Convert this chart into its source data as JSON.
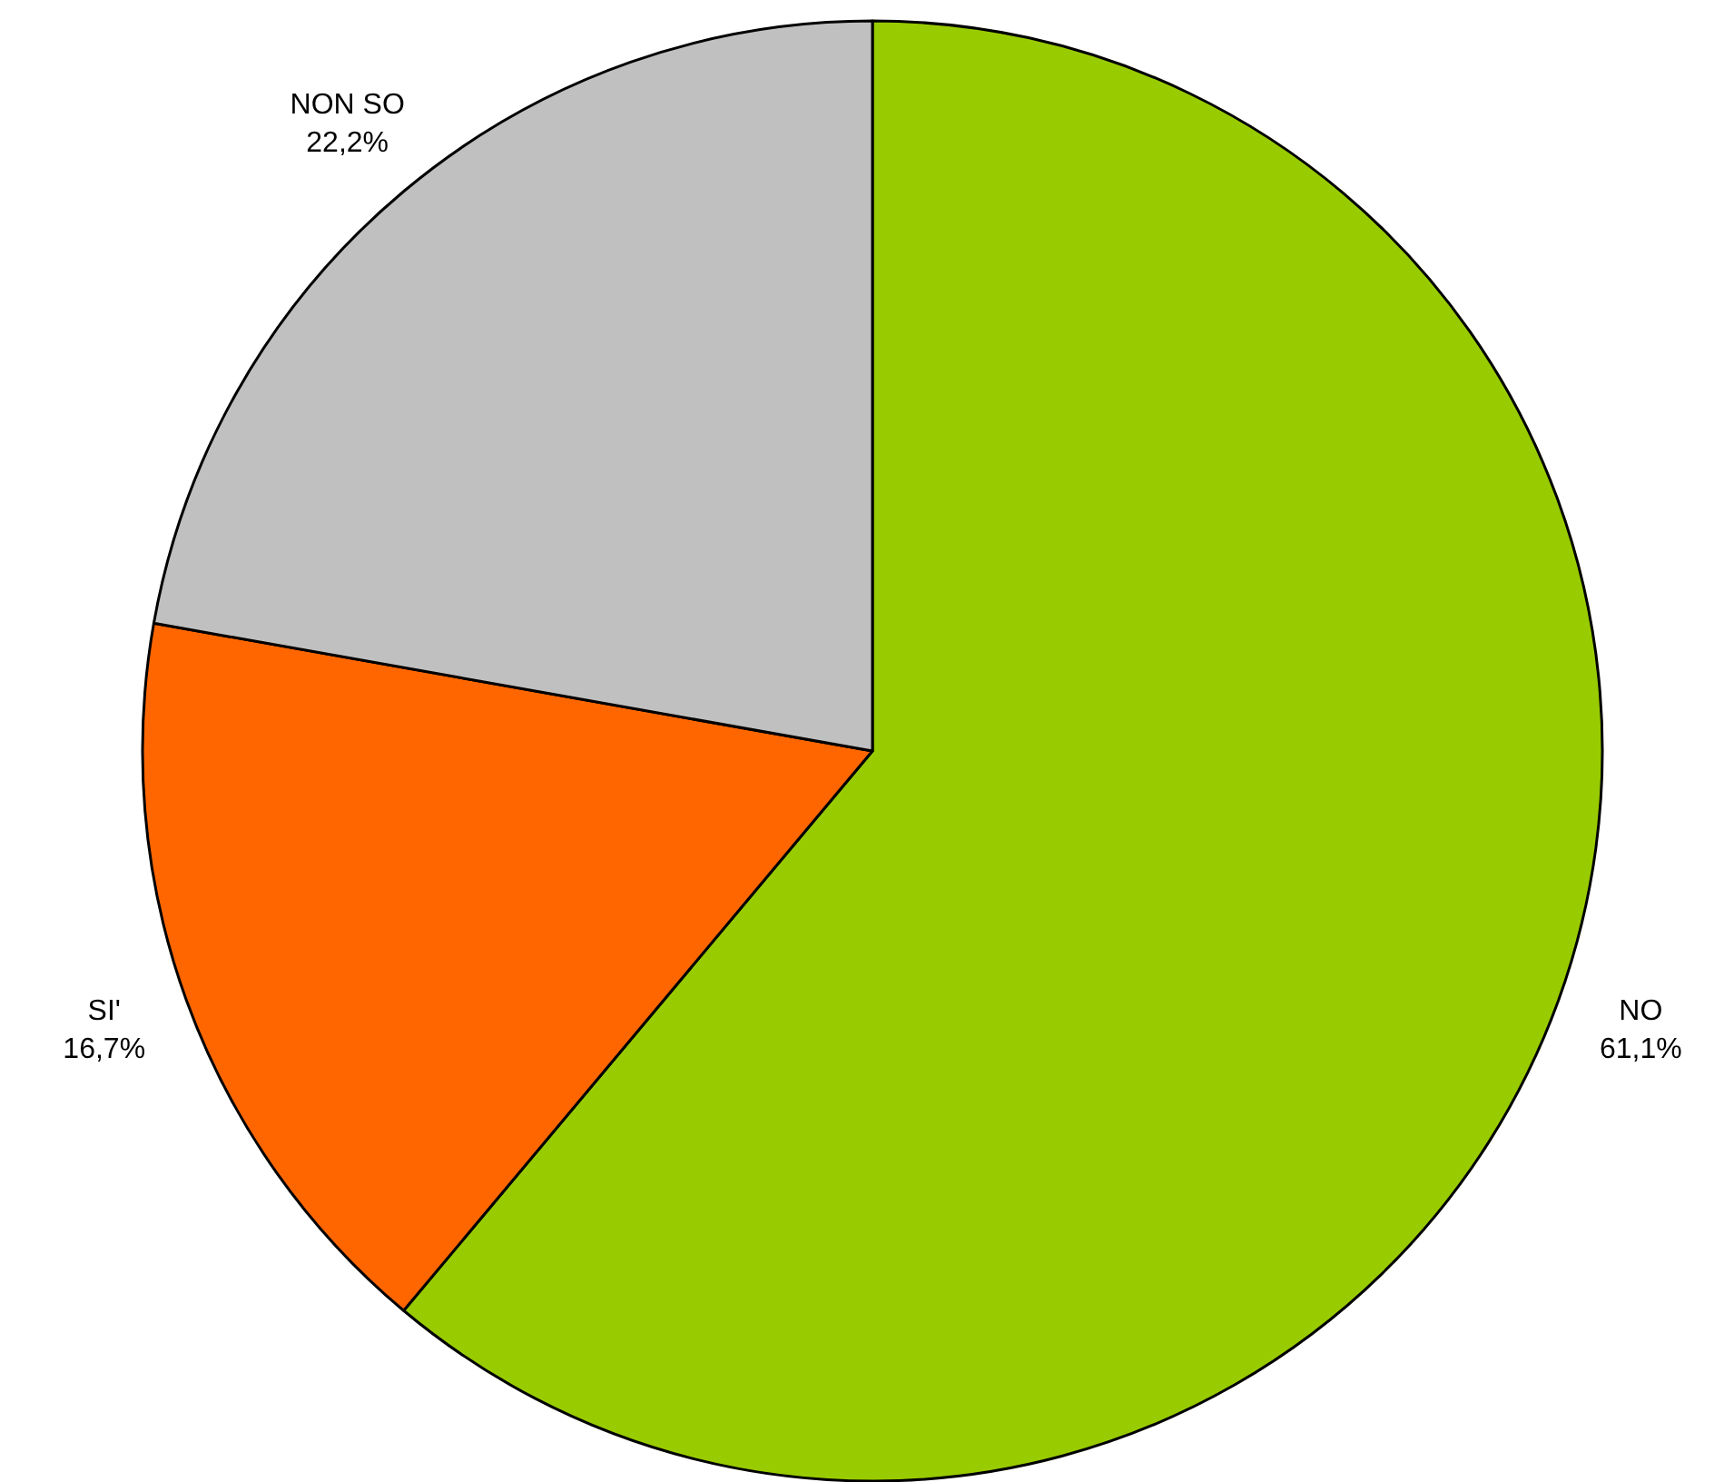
{
  "chart_data": {
    "type": "pie",
    "categories": [
      "NO",
      "SI'",
      "NON SO"
    ],
    "values": [
      61.1,
      16.7,
      22.2
    ],
    "colors": [
      "#99cc00",
      "#ff6600",
      "#c0c0c0"
    ],
    "value_labels": [
      "61,1%",
      "16,7%",
      "22,2%"
    ]
  }
}
